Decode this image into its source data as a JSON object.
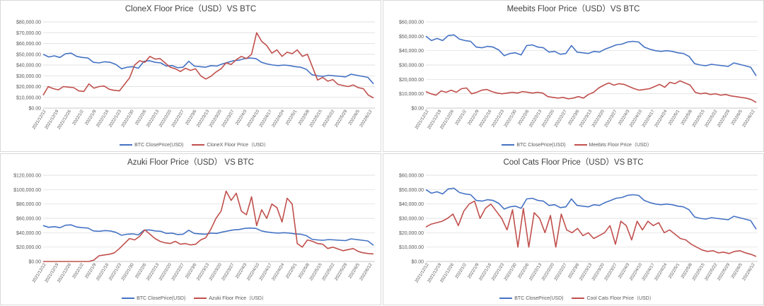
{
  "colors": {
    "btc": "#4472C4",
    "nft": "#C0504D",
    "grid": "#D9D9D9",
    "axis": "#BFBFBF"
  },
  "chart_data": [
    {
      "type": "line",
      "title": "CloneX Floor Price（USD）VS BTC",
      "ylim": [
        0,
        80000
      ],
      "yticks": [
        "$0.00",
        "$10,000.00",
        "$20,000.00",
        "$30,000.00",
        "$40,000.00",
        "$50,000.00",
        "$60,000.00",
        "$70,000.00",
        "$80,000.00"
      ],
      "xlabels": [
        "2021/12/12",
        "2021/12/19",
        "2021/12/26",
        "2022/1/2",
        "2022/1/9",
        "2022/1/16",
        "2022/1/23",
        "2022/1/30",
        "2022/2/6",
        "2022/2/13",
        "2022/2/20",
        "2022/2/27",
        "2022/3/6",
        "2022/3/13",
        "2022/3/20",
        "2022/3/27",
        "2022/4/3",
        "2022/4/10",
        "2022/4/17",
        "2022/4/24",
        "2022/5/1",
        "2022/5/8",
        "2022/5/15",
        "2022/5/22",
        "2022/5/29",
        "2022/6/5",
        "2022/6/12"
      ],
      "grid": true,
      "legend_position": "bottom",
      "series": [
        {
          "name": "BTC ClosePrice(USD)",
          "values": [
            50000,
            47500,
            48500,
            47000,
            50500,
            51000,
            48000,
            47000,
            46500,
            42500,
            42000,
            43000,
            42500,
            40500,
            36500,
            38000,
            38500,
            37000,
            43500,
            44000,
            42500,
            42000,
            39000,
            39500,
            37500,
            38000,
            43500,
            39000,
            38500,
            38000,
            39500,
            39000,
            41000,
            42500,
            44000,
            44500,
            46000,
            46500,
            46000,
            42500,
            41000,
            40000,
            39500,
            40000,
            39500,
            38500,
            38000,
            36000,
            31000,
            30000,
            29500,
            30500,
            30000,
            29500,
            29000,
            31500,
            30500,
            29500,
            28500,
            22500
          ]
        },
        {
          "name": "CloneX Floor Price（USD）",
          "values": [
            12000,
            20000,
            18000,
            17000,
            20000,
            19500,
            19000,
            16000,
            15500,
            22500,
            18500,
            20000,
            20500,
            17500,
            16500,
            16000,
            22000,
            28000,
            40000,
            44000,
            42500,
            48000,
            45500,
            46000,
            42000,
            38000,
            36500,
            34000,
            37000,
            35000,
            36500,
            30000,
            27000,
            29500,
            33500,
            36500,
            42000,
            40500,
            45000,
            48000,
            46000,
            50000,
            70000,
            62000,
            58000,
            51000,
            54000,
            48000,
            52000,
            50500,
            54000,
            48000,
            50000,
            38000,
            26000,
            28500,
            25000,
            26500,
            22000,
            21000,
            20000,
            21500,
            19000,
            18000,
            12000,
            9500
          ]
        }
      ]
    },
    {
      "type": "line",
      "title": "Meebits Floor Price（USD）VS BTC",
      "ylim": [
        0,
        60000
      ],
      "yticks": [
        "$0.00",
        "$10,000.00",
        "$20,000.00",
        "$30,000.00",
        "$40,000.00",
        "$50,000.00",
        "$60,000.00"
      ],
      "xlabels": [
        "2021/12/12",
        "2021/12/19",
        "2021/12/26",
        "2022/1/2",
        "2022/1/9",
        "2022/1/16",
        "2022/1/23",
        "2022/1/30",
        "2022/2/6",
        "2022/2/13",
        "2022/2/20",
        "2022/2/27",
        "2022/3/6",
        "2022/3/13",
        "2022/3/20",
        "2022/3/27",
        "2022/4/3",
        "2022/4/10",
        "2022/4/17",
        "2022/4/24",
        "2022/5/1",
        "2022/5/8",
        "2022/5/15",
        "2022/5/22",
        "2022/5/29",
        "2022/6/5",
        "2022/6/12"
      ],
      "grid": true,
      "legend_position": "bottom",
      "series": [
        {
          "name": "BTC ClosePrice(USD)",
          "values": [
            50000,
            47000,
            48500,
            47000,
            50500,
            51000,
            48000,
            47000,
            46500,
            42500,
            42000,
            43000,
            42500,
            40500,
            36500,
            38000,
            38500,
            37000,
            43500,
            44000,
            42500,
            42000,
            39000,
            39500,
            37500,
            38000,
            43500,
            39000,
            38500,
            38000,
            39500,
            39000,
            41000,
            42500,
            44000,
            44500,
            46000,
            46500,
            46000,
            42500,
            41000,
            40000,
            39500,
            40000,
            39500,
            38500,
            38000,
            36000,
            31000,
            30000,
            29500,
            30500,
            30000,
            29500,
            29000,
            31500,
            30500,
            29500,
            28500,
            22500
          ]
        },
        {
          "name": "Meebits Floor Price（USD）",
          "values": [
            11500,
            10000,
            9000,
            12000,
            11000,
            12500,
            11000,
            13500,
            14000,
            10000,
            11000,
            12500,
            13000,
            11500,
            10500,
            10000,
            10500,
            11000,
            10500,
            11500,
            11000,
            10500,
            11000,
            10500,
            8000,
            7500,
            7000,
            7500,
            6500,
            7000,
            8000,
            7000,
            9500,
            11000,
            14000,
            16000,
            17500,
            16000,
            17000,
            16500,
            15000,
            13500,
            12500,
            13000,
            13500,
            15000,
            16500,
            14500,
            18000,
            17000,
            19000,
            17500,
            16000,
            11000,
            10000,
            10500,
            9500,
            10000,
            9000,
            9500,
            8500,
            8000,
            7500,
            7000,
            6000,
            4000
          ]
        }
      ]
    },
    {
      "type": "line",
      "title": "Azuki Floor Price（USD） VS BTC",
      "ylim": [
        0,
        120000
      ],
      "yticks": [
        "$0.00",
        "$20,000.00",
        "$40,000.00",
        "$60,000.00",
        "$80,000.00",
        "$100,000.00",
        "$120,000.00"
      ],
      "xlabels": [
        "2021/12/12",
        "2021/12/19",
        "2021/12/26",
        "2022/1/2",
        "2022/1/9",
        "2022/1/16",
        "2022/1/23",
        "2022/1/30",
        "2022/2/6",
        "2022/2/13",
        "2022/2/20",
        "2022/2/27",
        "2022/3/6",
        "2022/3/13",
        "2022/3/20",
        "2022/3/27",
        "2022/4/3",
        "2022/4/10",
        "2022/4/17",
        "2022/4/24",
        "2022/5/1",
        "2022/5/8",
        "2022/5/15",
        "2022/5/22",
        "2022/5/29",
        "2022/6/5",
        "2022/6/12"
      ],
      "grid": true,
      "legend_position": "bottom",
      "series": [
        {
          "name": "BTC ClosePrice(USD)",
          "values": [
            50000,
            47500,
            48500,
            47000,
            50500,
            51000,
            48000,
            47000,
            46500,
            42500,
            42000,
            43000,
            42500,
            40500,
            36500,
            38000,
            38500,
            37000,
            43500,
            44000,
            42500,
            42000,
            39000,
            39500,
            37500,
            38000,
            43500,
            39000,
            38500,
            38000,
            39500,
            39000,
            41000,
            42500,
            44000,
            44500,
            46000,
            46500,
            46000,
            42500,
            41000,
            40000,
            39500,
            40000,
            39500,
            38500,
            38000,
            36000,
            31000,
            30000,
            29500,
            30500,
            30000,
            29500,
            29000,
            31500,
            30500,
            29500,
            28500,
            22500
          ]
        },
        {
          "name": "Azuki Floor Price（USD）",
          "values": [
            0,
            0,
            0,
            0,
            0,
            0,
            0,
            0,
            0,
            0,
            2000,
            8000,
            9000,
            10000,
            12000,
            18000,
            25000,
            32000,
            30000,
            35000,
            44000,
            38000,
            32000,
            28000,
            26000,
            25000,
            28000,
            24000,
            25000,
            23000,
            24000,
            30000,
            33000,
            45000,
            60000,
            70000,
            98000,
            85000,
            95000,
            70000,
            65000,
            90000,
            50000,
            72000,
            60000,
            80000,
            75000,
            55000,
            88000,
            80000,
            25000,
            20000,
            30000,
            28000,
            25000,
            24000,
            18000,
            20000,
            17500,
            15000,
            16500,
            18000,
            14000,
            12000,
            11000,
            10500
          ]
        }
      ]
    },
    {
      "type": "line",
      "title": "Cool Cats Floor Price（USD）VS BTC",
      "ylim": [
        0,
        60000
      ],
      "yticks": [
        "$0.00",
        "$10,000.00",
        "$20,000.00",
        "$30,000.00",
        "$40,000.00",
        "$50,000.00",
        "$60,000.00"
      ],
      "xlabels": [
        "2021/12/12",
        "2021/12/19",
        "2021/12/26",
        "2022/1/2",
        "2022/1/9",
        "2022/1/16",
        "2022/1/23",
        "2022/1/30",
        "2022/2/6",
        "2022/2/13",
        "2022/2/20",
        "2022/2/27",
        "2022/3/6",
        "2022/3/13",
        "2022/3/20",
        "2022/3/27",
        "2022/4/3",
        "2022/4/10",
        "2022/4/17",
        "2022/4/24",
        "2022/5/1",
        "2022/5/8",
        "2022/5/15",
        "2022/5/22",
        "2022/5/29",
        "2022/6/5",
        "2022/6/12"
      ],
      "grid": true,
      "legend_position": "bottom",
      "series": [
        {
          "name": "BTC ClosePrice(USD)",
          "values": [
            50000,
            47500,
            48500,
            47000,
            50500,
            51000,
            48000,
            47000,
            46500,
            42500,
            42000,
            43000,
            42500,
            40500,
            36500,
            38000,
            38500,
            37000,
            43500,
            44000,
            42500,
            42000,
            39000,
            39500,
            37500,
            38000,
            43500,
            39000,
            38500,
            38000,
            39500,
            39000,
            41000,
            42500,
            44000,
            44500,
            46000,
            46500,
            46000,
            42500,
            41000,
            40000,
            39500,
            40000,
            39500,
            38500,
            38000,
            36000,
            31000,
            30000,
            29500,
            30500,
            30000,
            29500,
            29000,
            31500,
            30500,
            29500,
            28500,
            22500
          ]
        },
        {
          "name": "Cool Cats Floor Price（USD）",
          "values": [
            24000,
            26000,
            27000,
            28000,
            30000,
            33000,
            25000,
            35000,
            40000,
            42000,
            30000,
            37000,
            40000,
            35000,
            30000,
            22000,
            36000,
            10000,
            37000,
            10000,
            34000,
            30000,
            20000,
            32000,
            10000,
            33000,
            22000,
            20000,
            23000,
            18000,
            20000,
            16000,
            18000,
            20000,
            25000,
            12000,
            28000,
            25000,
            15000,
            28000,
            22000,
            28000,
            25000,
            27000,
            20000,
            22000,
            19000,
            16000,
            15000,
            12000,
            10000,
            8000,
            7000,
            7500,
            6000,
            6500,
            5500,
            7000,
            7500,
            6000,
            5000,
            3500
          ]
        }
      ]
    }
  ]
}
